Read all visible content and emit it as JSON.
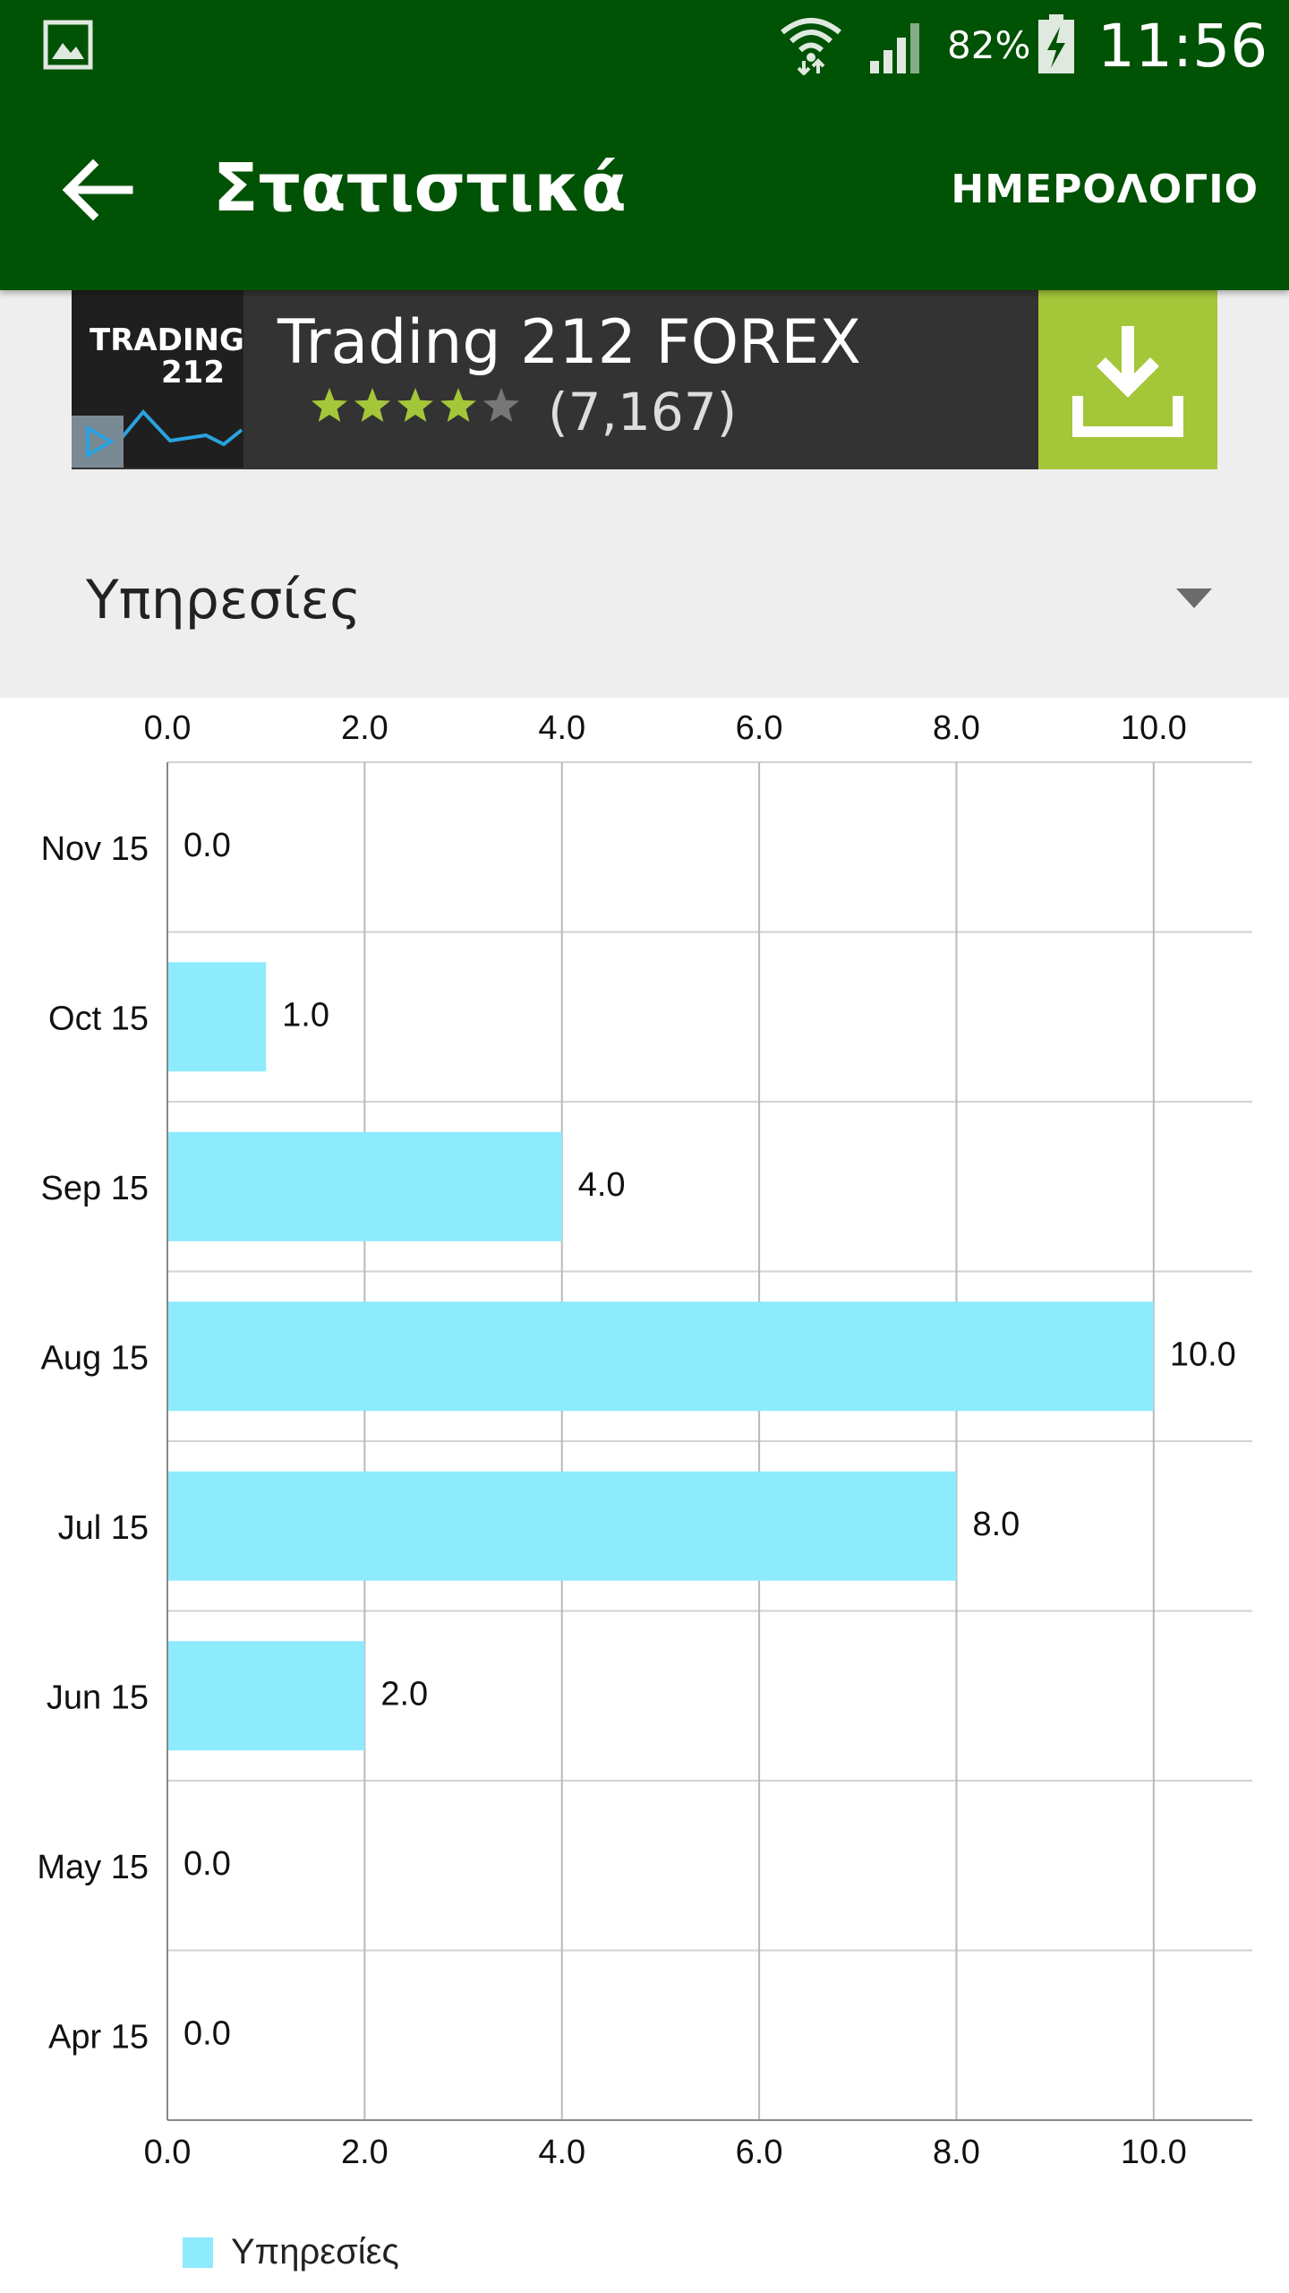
{
  "status_bar": {
    "battery_percent": "82%",
    "time": "11:56",
    "icons": [
      "gallery-icon",
      "wifi-icon",
      "signal-icon",
      "battery-charging-icon"
    ]
  },
  "app_bar": {
    "title": "Στατιστικά",
    "action_label": "ΗΜΕΡΟΛΟΓΙΟ",
    "background_color": "#005204"
  },
  "ad": {
    "logo_line1": "TRADING",
    "logo_line2": "212",
    "title": "Trading 212 FOREX",
    "rating_stars": 4,
    "rating_count": "(7,167)",
    "accent_color": "#a4c639"
  },
  "category_select": {
    "selected": "Υπηρεσίες"
  },
  "chart_data": {
    "type": "bar",
    "orientation": "horizontal",
    "categories": [
      "Nov 15",
      "Oct 15",
      "Sep 15",
      "Aug 15",
      "Jul 15",
      "Jun 15",
      "May 15",
      "Apr 15"
    ],
    "series": [
      {
        "name": "Υπηρεσίες",
        "values": [
          0.0,
          1.0,
          4.0,
          10.0,
          8.0,
          2.0,
          0.0,
          0.0
        ],
        "value_labels": [
          "0.0",
          "1.0",
          "4.0",
          "10.0",
          "8.0",
          "2.0",
          "0.0",
          "0.0"
        ],
        "color": "#8eeafd"
      }
    ],
    "x_ticks": [
      "0.0",
      "2.0",
      "4.0",
      "6.0",
      "8.0",
      "10.0"
    ],
    "x_tick_values": [
      0,
      2,
      4,
      6,
      8,
      10
    ],
    "xlim": [
      0,
      11
    ],
    "grid": true,
    "x_axis_labels_top_and_bottom": true,
    "legend_position": "bottom-left"
  }
}
